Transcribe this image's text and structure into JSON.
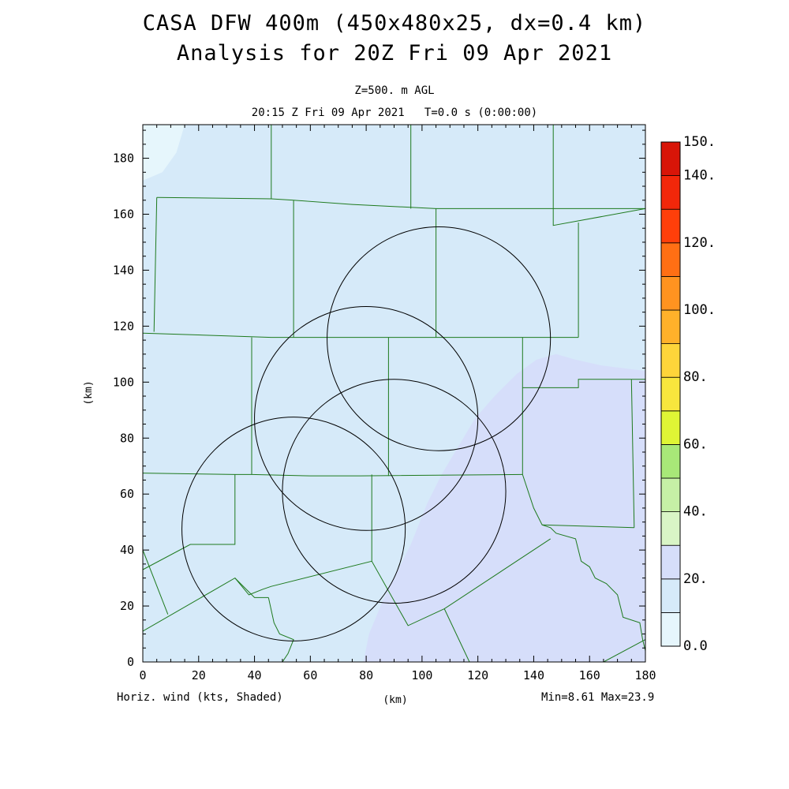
{
  "figure": {
    "title_line1": "CASA DFW 400m (450x480x25, dx=0.4 km)",
    "title_line2": "Analysis for 20Z Fri 09 Apr 2021",
    "subtitle_line1": "Z=500. m AGL",
    "subtitle_line2": "20:15 Z Fri 09 Apr 2021   T=0.0 s (0:00:00)",
    "field_label": "Horiz. wind (kts, Shaded)",
    "min_max_label": "Min=8.61 Max=23.9"
  },
  "chart_data": {
    "type": "heatmap",
    "variable": "Horiz. wind (kts, Shaded)",
    "xlabel": "(km)",
    "ylabel": "(km)",
    "xlim": [
      0,
      180
    ],
    "ylim": [
      0,
      192
    ],
    "x_ticks": [
      0,
      20,
      40,
      60,
      80,
      100,
      120,
      140,
      160,
      180
    ],
    "y_ticks": [
      0,
      20,
      40,
      60,
      80,
      100,
      120,
      140,
      160,
      180
    ],
    "min": 8.61,
    "max": 23.9,
    "colorbar": {
      "bounds": [
        0,
        10,
        20,
        30,
        40,
        50,
        60,
        70,
        80,
        90,
        100,
        110,
        120,
        130,
        140,
        150
      ],
      "colors": [
        "#e6f6fc",
        "#d6eaf9",
        "#d6defa",
        "#d9f5c6",
        "#c6f0a6",
        "#a8e878",
        "#dff535",
        "#f8e63d",
        "#fed53a",
        "#ffb12a",
        "#ff9320",
        "#ff6f14",
        "#ff3f0a",
        "#f2270a",
        "#d81508",
        "#b00000"
      ],
      "tick_labels": [
        {
          "value": 0,
          "label": "0.0"
        },
        {
          "value": 20,
          "label": "20."
        },
        {
          "value": 40,
          "label": "40."
        },
        {
          "value": 60,
          "label": "60."
        },
        {
          "value": 80,
          "label": "80."
        },
        {
          "value": 100,
          "label": "100."
        },
        {
          "value": 120,
          "label": "120."
        },
        {
          "value": 140,
          "label": "140."
        },
        {
          "value": 150,
          "label": "150."
        }
      ]
    },
    "regions": [
      {
        "band": "0-10 kts",
        "color": "#e6f6fc",
        "polygon": [
          [
            0,
            192
          ],
          [
            15,
            192
          ],
          [
            12,
            182
          ],
          [
            7,
            175
          ],
          [
            0,
            172
          ]
        ]
      },
      {
        "band": "20-30 kts",
        "color": "#d6defa",
        "polygon": [
          [
            79,
            0
          ],
          [
            81,
            10
          ],
          [
            86,
            22
          ],
          [
            91,
            32
          ],
          [
            96,
            42
          ],
          [
            102,
            57
          ],
          [
            107,
            67
          ],
          [
            113,
            77
          ],
          [
            119,
            87
          ],
          [
            126,
            95
          ],
          [
            134,
            103
          ],
          [
            141,
            108
          ],
          [
            148,
            110
          ],
          [
            155,
            108
          ],
          [
            164,
            106
          ],
          [
            172,
            105
          ],
          [
            180,
            104
          ],
          [
            180,
            0
          ]
        ]
      }
    ],
    "radar_rings": [
      {
        "center": [
          54,
          47.5
        ],
        "radius": 40
      },
      {
        "center": [
          80,
          87
        ],
        "radius": 40
      },
      {
        "center": [
          106,
          115.5
        ],
        "radius": 40
      },
      {
        "center": [
          90,
          61
        ],
        "radius": 40
      }
    ],
    "county_boundaries": [
      [
        [
          0,
          117.5
        ],
        [
          46,
          116
        ],
        [
          79,
          116
        ],
        [
          104,
          116
        ],
        [
          120,
          116
        ],
        [
          136,
          116
        ],
        [
          156,
          116
        ]
      ],
      [
        [
          0,
          67.5
        ],
        [
          33,
          67
        ],
        [
          39,
          67
        ],
        [
          60,
          66.5
        ],
        [
          78,
          66.5
        ],
        [
          136,
          67
        ]
      ],
      [
        [
          5,
          166
        ],
        [
          46,
          165.5
        ],
        [
          54,
          165
        ],
        [
          75,
          163.5
        ],
        [
          105,
          162
        ],
        [
          147,
          162
        ],
        [
          180,
          162
        ]
      ],
      [
        [
          46,
          192
        ],
        [
          46,
          165.5
        ]
      ],
      [
        [
          96,
          192
        ],
        [
          96,
          162
        ]
      ],
      [
        [
          147,
          192
        ],
        [
          147,
          156
        ],
        [
          180,
          162
        ]
      ],
      [
        [
          5,
          166
        ],
        [
          4,
          118
        ]
      ],
      [
        [
          54,
          165
        ],
        [
          54,
          116
        ]
      ],
      [
        [
          105,
          162
        ],
        [
          105,
          116
        ]
      ],
      [
        [
          156,
          157
        ],
        [
          156,
          116
        ]
      ],
      [
        [
          39,
          116
        ],
        [
          39,
          67
        ]
      ],
      [
        [
          88,
          116
        ],
        [
          88,
          66.5
        ]
      ],
      [
        [
          136,
          116
        ],
        [
          136,
          67
        ]
      ],
      [
        [
          136,
          98
        ],
        [
          156,
          98
        ],
        [
          156,
          101
        ],
        [
          175,
          101
        ],
        [
          180,
          101
        ]
      ],
      [
        [
          175,
          101
        ],
        [
          176,
          48
        ]
      ],
      [
        [
          33,
          67
        ],
        [
          33,
          42
        ],
        [
          17,
          42
        ],
        [
          0,
          33
        ]
      ],
      [
        [
          0,
          40
        ],
        [
          9,
          17
        ]
      ],
      [
        [
          0,
          11
        ],
        [
          33,
          30
        ],
        [
          40,
          23
        ],
        [
          45,
          23
        ]
      ],
      [
        [
          33,
          30
        ],
        [
          38,
          24
        ],
        [
          43,
          26
        ],
        [
          46,
          27
        ],
        [
          82,
          36
        ],
        [
          95,
          13
        ],
        [
          108,
          19
        ],
        [
          146,
          44
        ]
      ],
      [
        [
          82,
          67
        ],
        [
          82,
          36
        ]
      ],
      [
        [
          45,
          23
        ],
        [
          47,
          14
        ],
        [
          49,
          10
        ],
        [
          54,
          8
        ],
        [
          52,
          3
        ],
        [
          50,
          0
        ]
      ],
      [
        [
          108,
          19
        ],
        [
          117,
          0
        ]
      ],
      [
        [
          136,
          67
        ],
        [
          140,
          55
        ],
        [
          143,
          49
        ],
        [
          146,
          48
        ],
        [
          148,
          46
        ],
        [
          155,
          44
        ],
        [
          157,
          36
        ],
        [
          160,
          34
        ],
        [
          162,
          30
        ],
        [
          166,
          28
        ],
        [
          170,
          24
        ],
        [
          172,
          16
        ],
        [
          178,
          14
        ],
        [
          179,
          8
        ],
        [
          180,
          4
        ]
      ],
      [
        [
          143,
          49
        ],
        [
          176,
          48
        ]
      ],
      [
        [
          165,
          0
        ],
        [
          180,
          8
        ]
      ]
    ]
  }
}
